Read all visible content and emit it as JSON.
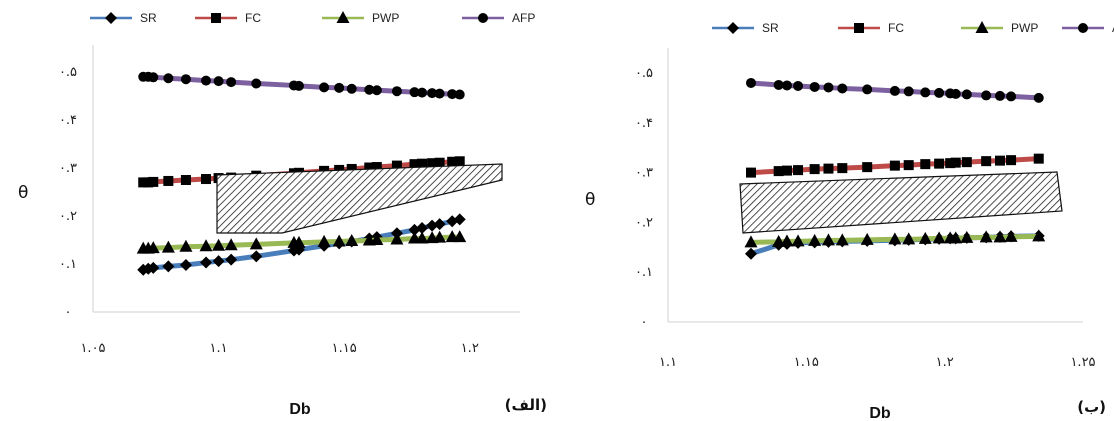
{
  "chart_data": [
    {
      "type": "line",
      "panel_label": "(الف)",
      "xlabel": "Db",
      "ylabel": "θ",
      "xlim": [
        1.05,
        1.22
      ],
      "ylim": [
        0,
        0.5
      ],
      "x_ticks": [
        1.05,
        1.1,
        1.15,
        1.2
      ],
      "x_tick_labels": [
        "۱.۰۵",
        "۱.۱",
        "۱.۱۵",
        "۱.۲"
      ],
      "y_ticks": [
        0,
        0.1,
        0.2,
        0.3,
        0.4,
        0.5
      ],
      "y_tick_labels": [
        "۰",
        "۰.۱",
        "۰.۲",
        "۰.۳",
        "۰.۴",
        "۰.۵"
      ],
      "legend_position": "top",
      "x": [
        1.07,
        1.072,
        1.074,
        1.08,
        1.087,
        1.095,
        1.1,
        1.105,
        1.115,
        1.13,
        1.132,
        1.142,
        1.148,
        1.153,
        1.16,
        1.163,
        1.171,
        1.178,
        1.181,
        1.185,
        1.188,
        1.193,
        1.196
      ],
      "series": [
        {
          "name": "SR",
          "color": "#4a7ebb",
          "marker": "diamond",
          "values": [
            0.088,
            0.09,
            0.092,
            0.095,
            0.098,
            0.103,
            0.106,
            0.109,
            0.116,
            0.128,
            0.13,
            0.138,
            0.143,
            0.147,
            0.153,
            0.156,
            0.164,
            0.171,
            0.175,
            0.18,
            0.183,
            0.189,
            0.193
          ]
        },
        {
          "name": "FC",
          "color": "#be4b48",
          "marker": "square",
          "values": [
            0.27,
            0.27,
            0.271,
            0.273,
            0.275,
            0.277,
            0.279,
            0.28,
            0.284,
            0.289,
            0.29,
            0.294,
            0.296,
            0.298,
            0.301,
            0.302,
            0.305,
            0.308,
            0.309,
            0.31,
            0.311,
            0.313,
            0.314
          ]
        },
        {
          "name": "PWP",
          "color": "#98b954",
          "marker": "triangle",
          "values": [
            0.132,
            0.132,
            0.133,
            0.134,
            0.136,
            0.137,
            0.138,
            0.139,
            0.141,
            0.144,
            0.144,
            0.146,
            0.147,
            0.148,
            0.149,
            0.15,
            0.151,
            0.153,
            0.153,
            0.154,
            0.155,
            0.156,
            0.156
          ]
        },
        {
          "name": "AFP",
          "color": "#7d60a0",
          "marker": "circle",
          "values": [
            0.49,
            0.49,
            0.489,
            0.487,
            0.485,
            0.482,
            0.481,
            0.479,
            0.476,
            0.472,
            0.471,
            0.468,
            0.467,
            0.465,
            0.463,
            0.462,
            0.46,
            0.458,
            0.457,
            0.456,
            0.455,
            0.454,
            0.453
          ]
        }
      ]
    },
    {
      "type": "line",
      "panel_label": "(ب)",
      "xlabel": "Db",
      "ylabel": "θ",
      "xlim": [
        1.1,
        1.25
      ],
      "ylim": [
        0,
        0.5
      ],
      "x_ticks": [
        1.1,
        1.15,
        1.2,
        1.25
      ],
      "x_tick_labels": [
        "۱.۱",
        "۱.۱۵",
        "۱.۲",
        "۱.۲۵"
      ],
      "y_ticks": [
        0,
        0.1,
        0.2,
        0.3,
        0.4,
        0.5
      ],
      "y_tick_labels": [
        "۰",
        "۰.۱",
        "۰.۲",
        "۰.۳",
        "۰.۴",
        "۰.۵"
      ],
      "legend_position": "top",
      "x": [
        1.13,
        1.14,
        1.143,
        1.147,
        1.153,
        1.158,
        1.163,
        1.172,
        1.182,
        1.187,
        1.193,
        1.198,
        1.202,
        1.204,
        1.208,
        1.215,
        1.22,
        1.224,
        1.234
      ],
      "series": [
        {
          "name": "SR",
          "color": "#4a7ebb",
          "marker": "diamond",
          "values": [
            0.137,
            0.155,
            0.157,
            0.159,
            0.16,
            0.161,
            0.162,
            0.163,
            0.164,
            0.165,
            0.166,
            0.167,
            0.168,
            0.168,
            0.169,
            0.17,
            0.171,
            0.172,
            0.173
          ]
        },
        {
          "name": "FC",
          "color": "#be4b48",
          "marker": "square",
          "values": [
            0.3,
            0.303,
            0.304,
            0.305,
            0.307,
            0.308,
            0.309,
            0.311,
            0.314,
            0.315,
            0.317,
            0.318,
            0.319,
            0.32,
            0.321,
            0.323,
            0.324,
            0.325,
            0.328
          ]
        },
        {
          "name": "PWP",
          "color": "#98b954",
          "marker": "triangle",
          "values": [
            0.16,
            0.161,
            0.162,
            0.162,
            0.163,
            0.164,
            0.164,
            0.165,
            0.166,
            0.166,
            0.167,
            0.168,
            0.168,
            0.168,
            0.169,
            0.17,
            0.17,
            0.171,
            0.172
          ]
        },
        {
          "name": "AFP",
          "color": "#7d60a0",
          "marker": "circle",
          "values": [
            0.48,
            0.476,
            0.475,
            0.474,
            0.472,
            0.471,
            0.469,
            0.467,
            0.464,
            0.463,
            0.461,
            0.46,
            0.459,
            0.458,
            0.457,
            0.455,
            0.454,
            0.453,
            0.45
          ]
        }
      ]
    }
  ]
}
